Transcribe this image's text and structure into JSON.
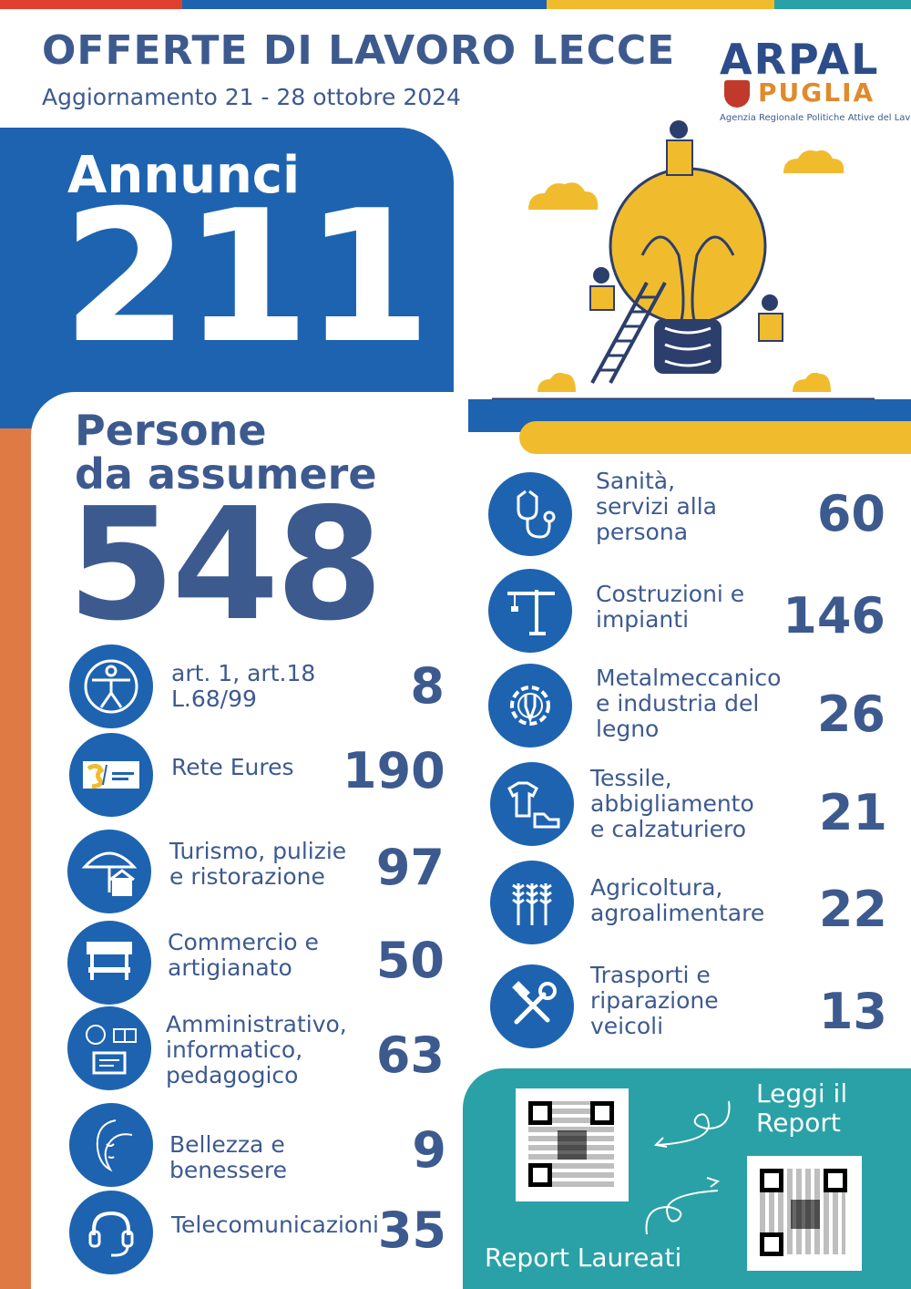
{
  "header": {
    "title": "OFFERTE DI LAVORO LECCE",
    "subtitle": "Aggiornamento 21 - 28 ottobre 2024",
    "logo_main": "ARPAL",
    "logo_region": "PUGLIA",
    "logo_tagline": "Agenzia Regionale Politiche Attive del Lavoro"
  },
  "colors": {
    "blue": "#1e63b0",
    "navy": "#3d5a8f",
    "orange": "#e07a45",
    "yellow": "#f0bc2e",
    "teal": "#2aa1a6"
  },
  "annunci": {
    "label": "Annunci",
    "value": "211"
  },
  "persone": {
    "label_line1": "Persone",
    "label_line2": "da assumere",
    "value": "548"
  },
  "left_categories": [
    {
      "icon": "accessibility-icon",
      "label": [
        "art. 1, art.18",
        "L.68/99"
      ],
      "value": "8"
    },
    {
      "icon": "eures-logo-icon",
      "label": [
        "Rete Eures"
      ],
      "value": "190"
    },
    {
      "icon": "umbrella-house-icon",
      "label": [
        "Turismo, pulizie",
        "e ristorazione"
      ],
      "value": "97"
    },
    {
      "icon": "market-stall-icon",
      "label": [
        "Commercio e",
        "artigianato"
      ],
      "value": "50"
    },
    {
      "icon": "computer-book-icon",
      "label": [
        "Amministrativo,",
        "informatico,",
        "pedagogico"
      ],
      "value": "63"
    },
    {
      "icon": "woman-face-icon",
      "label": [
        "Bellezza e",
        "benessere"
      ],
      "value": "9"
    },
    {
      "icon": "headset-icon",
      "label": [
        "Telecomunicazioni"
      ],
      "value": "35"
    }
  ],
  "right_categories": [
    {
      "icon": "stethoscope-icon",
      "label": [
        "Sanità,",
        "servizi alla",
        "persona"
      ],
      "value": "60"
    },
    {
      "icon": "crane-icon",
      "label": [
        "Costruzioni e",
        "impianti"
      ],
      "value": "146"
    },
    {
      "icon": "gear-wrench-icon",
      "label": [
        "Metalmeccanico",
        "e industria del",
        "legno"
      ],
      "value": "26"
    },
    {
      "icon": "shirt-shoe-icon",
      "label": [
        "Tessile,",
        "abbigliamento",
        "e calzaturiero"
      ],
      "value": "21"
    },
    {
      "icon": "wheat-icon",
      "label": [
        "Agricoltura,",
        "agroalimentare"
      ],
      "value": "22"
    },
    {
      "icon": "tools-icon",
      "label": [
        "Trasporti e",
        "riparazione",
        "veicoli"
      ],
      "value": "13"
    }
  ],
  "report": {
    "read_label_1": "Leggi il",
    "read_label_2": "Report",
    "graduates_label": "Report Laureati"
  }
}
